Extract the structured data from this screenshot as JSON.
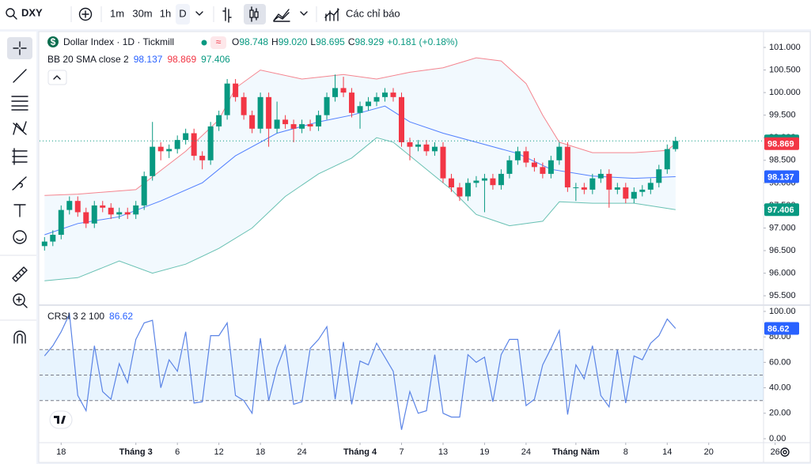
{
  "toolbar": {
    "symbol": "DXY",
    "intervals": [
      "1m",
      "30m",
      "1h",
      "D"
    ],
    "indicators": "Các chỉ báo"
  },
  "chart_data": [
    {
      "type": "candlestick",
      "logo": "$",
      "title": "Dollar Index · 1D · Tickmill",
      "status": "≈",
      "ohlc": [
        {
          "label": "O",
          "value": "98.748"
        },
        {
          "label": "H",
          "value": "99.020"
        },
        {
          "label": "L",
          "value": "98.695"
        },
        {
          "label": "C",
          "value": "98.929"
        }
      ],
      "change": "+0.181 (+0.18%)",
      "indicator_label": "BB 20 SMA close 2",
      "up_color": "#089981",
      "down_color": "#f23645",
      "open": [
        96.6,
        96.7,
        96.85,
        97.4,
        97.6,
        97.35,
        97.1,
        97.5,
        97.45,
        97.3,
        97.35,
        97.3,
        97.5,
        98.15,
        98.8,
        98.7,
        98.75,
        98.95,
        99.1,
        98.6,
        98.5,
        99.25,
        99.5,
        100.2,
        99.9,
        99.5,
        99.2,
        99.9,
        99.2,
        99.4,
        99.3,
        99.2,
        99.3,
        99.25,
        99.5,
        99.9,
        100.1,
        100.0,
        99.55,
        99.7,
        99.8,
        99.9,
        100.0,
        99.9,
        98.9,
        98.8,
        98.85,
        98.7,
        98.8,
        98.1,
        97.9,
        97.7,
        98.0,
        98.05,
        98.1,
        97.95,
        98.2,
        98.5,
        98.7,
        98.45,
        98.35,
        98.2,
        98.5,
        98.8,
        97.9,
        97.9,
        97.85,
        98.1,
        98.2,
        97.85,
        97.9,
        97.65,
        97.8,
        97.85,
        98.0,
        98.3,
        98.748
      ],
      "high": [
        96.8,
        96.95,
        97.5,
        97.7,
        97.7,
        97.45,
        97.6,
        97.6,
        97.55,
        97.45,
        97.45,
        97.6,
        98.25,
        99.35,
        98.9,
        98.85,
        99.05,
        99.2,
        99.2,
        98.7,
        99.35,
        99.6,
        100.3,
        100.3,
        100.0,
        99.6,
        100.0,
        100.0,
        99.8,
        99.5,
        99.4,
        99.4,
        99.4,
        99.6,
        100.0,
        100.4,
        100.35,
        100.1,
        99.8,
        99.9,
        100.0,
        100.1,
        100.1,
        100.0,
        99.0,
        98.95,
        98.95,
        98.9,
        98.9,
        98.2,
        98.0,
        98.1,
        98.15,
        98.2,
        98.2,
        98.3,
        98.6,
        98.8,
        98.8,
        98.55,
        98.45,
        98.6,
        98.9,
        98.9,
        98.0,
        98.0,
        98.2,
        98.3,
        98.3,
        98.0,
        98.0,
        97.9,
        97.95,
        98.1,
        98.4,
        98.85,
        99.02
      ],
      "low": [
        96.5,
        96.6,
        96.75,
        97.3,
        97.25,
        97.0,
        97.0,
        97.35,
        97.2,
        97.2,
        97.2,
        97.2,
        97.4,
        98.05,
        98.5,
        98.55,
        98.65,
        98.85,
        98.5,
        98.3,
        98.4,
        99.15,
        99.4,
        99.8,
        99.4,
        99.1,
        99.1,
        98.8,
        99.1,
        99.2,
        98.9,
        99.1,
        99.15,
        99.15,
        99.4,
        99.8,
        99.9,
        99.45,
        99.2,
        99.6,
        99.7,
        99.8,
        99.8,
        98.8,
        98.5,
        98.7,
        98.6,
        98.6,
        98.0,
        97.8,
        97.6,
        97.6,
        97.9,
        97.35,
        97.85,
        97.85,
        98.1,
        98.4,
        98.35,
        98.25,
        98.1,
        98.1,
        98.4,
        97.8,
        97.6,
        97.75,
        97.75,
        98.0,
        97.45,
        97.75,
        97.55,
        97.55,
        97.7,
        97.75,
        97.9,
        98.2,
        98.695
      ],
      "close": [
        96.7,
        96.85,
        97.4,
        97.6,
        97.35,
        97.1,
        97.5,
        97.45,
        97.3,
        97.35,
        97.3,
        97.5,
        98.15,
        98.8,
        98.7,
        98.75,
        98.95,
        99.1,
        98.6,
        98.5,
        99.25,
        99.5,
        100.2,
        99.9,
        99.5,
        99.2,
        99.9,
        99.2,
        99.4,
        99.3,
        99.2,
        99.3,
        99.25,
        99.5,
        99.9,
        100.1,
        100.0,
        99.55,
        99.7,
        99.8,
        99.9,
        100.0,
        99.9,
        98.9,
        98.8,
        98.85,
        98.7,
        98.8,
        98.1,
        97.9,
        97.7,
        98.0,
        98.05,
        98.1,
        97.95,
        98.2,
        98.5,
        98.7,
        98.45,
        98.35,
        98.2,
        98.5,
        98.8,
        97.9,
        97.9,
        97.85,
        98.1,
        98.2,
        97.85,
        97.9,
        97.65,
        97.8,
        97.85,
        98.0,
        98.3,
        98.748,
        98.929
      ],
      "bands": {
        "basis": {
          "color": "#2962ff",
          "x": [
            0,
            4,
            9,
            14,
            19,
            23,
            28,
            33,
            37,
            41,
            44,
            48,
            52,
            57,
            61,
            66,
            71,
            76
          ],
          "values": [
            96.85,
            97.1,
            97.25,
            97.6,
            98.0,
            98.6,
            99.1,
            99.35,
            99.5,
            99.7,
            99.35,
            99.1,
            98.9,
            98.65,
            98.3,
            98.15,
            98.1,
            98.137
          ]
        },
        "upper": {
          "color": "#f23645",
          "x": [
            0,
            4,
            11,
            17,
            21,
            23,
            26,
            31,
            36,
            40,
            44,
            48,
            52,
            55,
            58,
            60,
            62,
            66,
            71,
            75,
            76
          ],
          "values": [
            97.72,
            97.75,
            97.85,
            98.7,
            99.4,
            100.1,
            100.5,
            100.3,
            100.4,
            100.3,
            100.45,
            100.55,
            100.77,
            100.7,
            100.2,
            99.5,
            98.9,
            98.67,
            98.67,
            98.72,
            98.869
          ]
        },
        "lower": {
          "color": "#089981",
          "x": [
            0,
            4,
            9,
            13,
            17,
            21,
            25,
            29,
            33,
            37,
            40,
            42,
            45,
            49,
            52,
            56,
            60,
            62,
            66,
            71,
            76
          ],
          "values": [
            95.83,
            95.9,
            96.27,
            96.0,
            96.2,
            96.55,
            97.0,
            97.7,
            98.2,
            98.55,
            99.0,
            98.9,
            98.45,
            97.85,
            97.3,
            97.05,
            97.15,
            97.58,
            97.55,
            97.55,
            97.406
          ]
        }
      },
      "xlim": [
        -0.6,
        86.6
      ],
      "xticks": [
        {
          "value": 2,
          "label": "18"
        },
        {
          "value": 11,
          "label": "Tháng 3"
        },
        {
          "value": 16,
          "label": "6"
        },
        {
          "value": 21,
          "label": "12"
        },
        {
          "value": 26,
          "label": "18"
        },
        {
          "value": 31,
          "label": "24"
        },
        {
          "value": 38,
          "label": "Tháng 4"
        },
        {
          "value": 43,
          "label": "7"
        },
        {
          "value": 48,
          "label": "13"
        },
        {
          "value": 53,
          "label": "19"
        },
        {
          "value": 58,
          "label": "24"
        },
        {
          "value": 64,
          "label": "Tháng Năm"
        },
        {
          "value": 70,
          "label": "8"
        },
        {
          "value": 75,
          "label": "14"
        },
        {
          "value": 80,
          "label": "20"
        },
        {
          "value": 88,
          "label": "26"
        }
      ],
      "ylim": [
        95.31,
        101.35
      ],
      "yticks": [
        {
          "value": 101,
          "label": "101.000"
        },
        {
          "value": 100.5,
          "label": "100.500"
        },
        {
          "value": 100,
          "label": "100.000"
        },
        {
          "value": 99.5,
          "label": "99.500"
        },
        {
          "value": 99,
          "label": "99.000"
        },
        {
          "value": 98.5,
          "label": "98.500"
        },
        {
          "value": 98,
          "label": "98.000"
        },
        {
          "value": 97.5,
          "label": "97.500"
        },
        {
          "value": 97,
          "label": "97.000"
        },
        {
          "value": 96.5,
          "label": "96.500"
        },
        {
          "value": 96,
          "label": "96.000"
        },
        {
          "value": 95.5,
          "label": "95.500"
        }
      ]
    },
    {
      "type": "line",
      "title": "CRSI 3 2 100",
      "color": "#5b84e6",
      "values": [
        65,
        73,
        84,
        98,
        34,
        22,
        73,
        37,
        31,
        59,
        44,
        78,
        91,
        93,
        40,
        62,
        53,
        84,
        28,
        29,
        81,
        81,
        91,
        34,
        30,
        20,
        79,
        30,
        56,
        73,
        27,
        29,
        71,
        78,
        88,
        31,
        76,
        27,
        61,
        58,
        75,
        64,
        53,
        7,
        37,
        20,
        22,
        66,
        20,
        17,
        17,
        66,
        60,
        64,
        29,
        66,
        78,
        78,
        26,
        31,
        58,
        71,
        85,
        19,
        58,
        47,
        73,
        34,
        25,
        70,
        28,
        65,
        62,
        75,
        81,
        94,
        86.62
      ],
      "levels": [
        70,
        50,
        30
      ],
      "ylim": [
        -3.1,
        103.7
      ],
      "yticks": [
        {
          "value": 100,
          "label": "100.00"
        },
        {
          "value": 80,
          "label": "80.00"
        },
        {
          "value": 60,
          "label": "60.00"
        },
        {
          "value": 40,
          "label": "40.00"
        },
        {
          "value": 20,
          "label": "20.00"
        },
        {
          "value": 0,
          "label": "0.00"
        }
      ]
    }
  ]
}
